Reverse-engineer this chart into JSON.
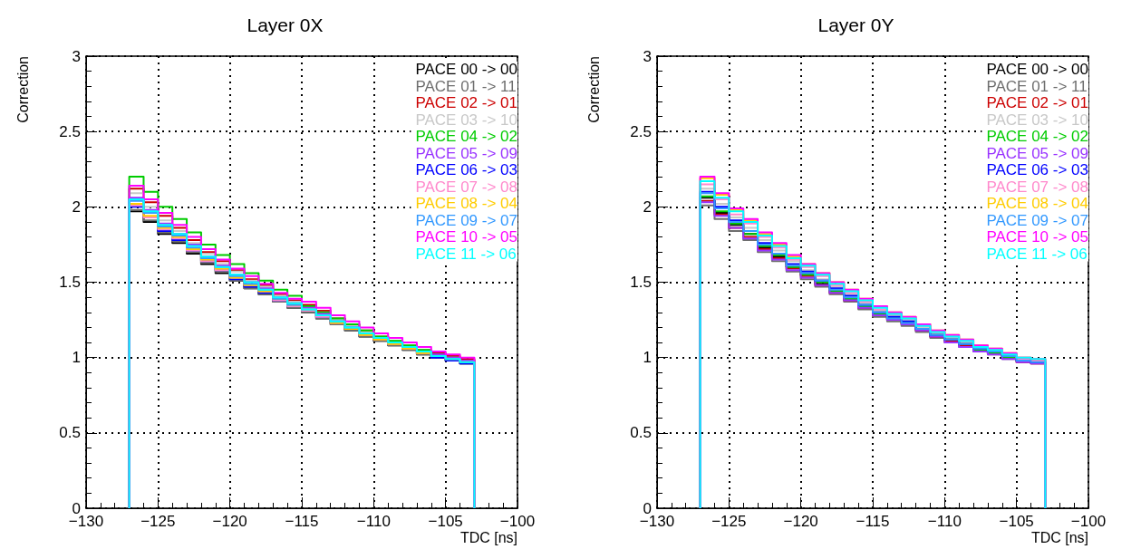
{
  "chart_data": [
    {
      "type": "histogram",
      "title": "Layer 0X",
      "xlabel": "TDC [ns]",
      "ylabel": "Correction",
      "xlim": [
        -130,
        -100
      ],
      "xticks": [
        -130,
        -125,
        -120,
        -115,
        -110,
        -105,
        -100
      ],
      "ylim": [
        0,
        3
      ],
      "yticks": [
        0,
        0.5,
        1,
        1.5,
        2,
        2.5,
        3
      ],
      "grid": true,
      "legend": "top right",
      "bins": [
        -127,
        -126,
        -125,
        -124,
        -123,
        -122,
        -121,
        -120,
        -119,
        -118,
        -117,
        -116,
        -115,
        -114,
        -113,
        -112,
        -111,
        -110,
        -109,
        -108,
        -107,
        -106,
        -105,
        -104,
        -103
      ],
      "series": [
        {
          "name": "PACE 00 -> 00",
          "color": "#000000",
          "values": [
            1.97,
            1.9,
            1.82,
            1.76,
            1.69,
            1.62,
            1.56,
            1.51,
            1.46,
            1.42,
            1.37,
            1.33,
            1.3,
            1.26,
            1.22,
            1.18,
            1.14,
            1.11,
            1.08,
            1.05,
            1.02,
            1.0,
            0.98,
            0.96
          ]
        },
        {
          "name": "PACE 01 -> 11",
          "color": "#6e6e6e",
          "values": [
            1.98,
            1.91,
            1.83,
            1.77,
            1.7,
            1.63,
            1.57,
            1.51,
            1.46,
            1.42,
            1.37,
            1.33,
            1.3,
            1.26,
            1.22,
            1.18,
            1.14,
            1.11,
            1.08,
            1.05,
            1.02,
            1.0,
            0.98,
            0.96
          ]
        },
        {
          "name": "PACE 02 -> 01",
          "color": "#cc0000",
          "values": [
            2.12,
            2.03,
            1.94,
            1.86,
            1.78,
            1.7,
            1.64,
            1.58,
            1.52,
            1.48,
            1.42,
            1.38,
            1.35,
            1.31,
            1.26,
            1.22,
            1.18,
            1.14,
            1.11,
            1.08,
            1.05,
            1.03,
            1.01,
            0.99
          ]
        },
        {
          "name": "PACE 03 -> 10",
          "color": "#c8c8c8",
          "values": [
            2.09,
            2.0,
            1.91,
            1.84,
            1.76,
            1.69,
            1.62,
            1.57,
            1.51,
            1.47,
            1.41,
            1.37,
            1.34,
            1.3,
            1.25,
            1.21,
            1.17,
            1.14,
            1.11,
            1.08,
            1.05,
            1.02,
            1.0,
            0.98
          ]
        },
        {
          "name": "PACE 04 -> 02",
          "color": "#00cc00",
          "values": [
            2.2,
            2.1,
            2.0,
            1.92,
            1.83,
            1.75,
            1.68,
            1.62,
            1.56,
            1.51,
            1.45,
            1.41,
            1.34,
            1.3,
            1.26,
            1.22,
            1.18,
            1.14,
            1.11,
            1.08,
            1.05,
            1.02,
            1.0,
            0.98
          ]
        },
        {
          "name": "PACE 05 -> 09",
          "color": "#9933ff",
          "values": [
            2.06,
            1.98,
            1.89,
            1.82,
            1.75,
            1.67,
            1.61,
            1.55,
            1.5,
            1.46,
            1.4,
            1.36,
            1.33,
            1.29,
            1.24,
            1.2,
            1.16,
            1.13,
            1.1,
            1.07,
            1.04,
            1.02,
            1.0,
            0.98
          ]
        },
        {
          "name": "PACE 06 -> 03",
          "color": "#0000ff",
          "values": [
            2.0,
            1.93,
            1.84,
            1.78,
            1.71,
            1.64,
            1.58,
            1.52,
            1.47,
            1.43,
            1.38,
            1.34,
            1.31,
            1.27,
            1.23,
            1.19,
            1.15,
            1.12,
            1.09,
            1.06,
            1.03,
            1.0,
            0.98,
            0.96
          ]
        },
        {
          "name": "PACE 07 -> 08",
          "color": "#ff88cc",
          "values": [
            2.01,
            1.93,
            1.85,
            1.79,
            1.71,
            1.64,
            1.58,
            1.53,
            1.48,
            1.44,
            1.38,
            1.34,
            1.31,
            1.27,
            1.23,
            1.19,
            1.15,
            1.12,
            1.09,
            1.06,
            1.03,
            1.01,
            0.99,
            0.97
          ]
        },
        {
          "name": "PACE 08 -> 04",
          "color": "#ffcc00",
          "values": [
            2.02,
            1.94,
            1.86,
            1.8,
            1.72,
            1.65,
            1.59,
            1.53,
            1.48,
            1.44,
            1.39,
            1.35,
            1.32,
            1.28,
            1.23,
            1.19,
            1.15,
            1.12,
            1.09,
            1.06,
            1.03,
            1.01,
            0.99,
            0.97
          ]
        },
        {
          "name": "PACE 09 -> 07",
          "color": "#3399ff",
          "values": [
            2.04,
            1.96,
            1.87,
            1.81,
            1.73,
            1.66,
            1.6,
            1.54,
            1.49,
            1.45,
            1.39,
            1.35,
            1.32,
            1.28,
            1.24,
            1.2,
            1.16,
            1.13,
            1.1,
            1.07,
            1.04,
            1.01,
            0.99,
            0.97
          ]
        },
        {
          "name": "PACE 10 -> 05",
          "color": "#ff00ff",
          "values": [
            2.14,
            2.05,
            1.96,
            1.88,
            1.8,
            1.72,
            1.65,
            1.59,
            1.54,
            1.49,
            1.43,
            1.39,
            1.37,
            1.33,
            1.28,
            1.24,
            1.2,
            1.16,
            1.13,
            1.1,
            1.07,
            1.04,
            1.02,
            1.0
          ]
        },
        {
          "name": "PACE 11 -> 06",
          "color": "#00ffff",
          "values": [
            2.05,
            1.97,
            1.88,
            1.82,
            1.74,
            1.67,
            1.6,
            1.55,
            1.5,
            1.45,
            1.4,
            1.36,
            1.32,
            1.28,
            1.24,
            1.2,
            1.16,
            1.13,
            1.1,
            1.07,
            1.04,
            1.01,
            0.99,
            0.97
          ]
        }
      ]
    },
    {
      "type": "histogram",
      "title": "Layer 0Y",
      "xlabel": "TDC [ns]",
      "ylabel": "Correction",
      "xlim": [
        -130,
        -100
      ],
      "xticks": [
        -130,
        -125,
        -120,
        -115,
        -110,
        -105,
        -100
      ],
      "ylim": [
        0,
        3
      ],
      "yticks": [
        0,
        0.5,
        1,
        1.5,
        2,
        2.5,
        3
      ],
      "grid": true,
      "legend": "top right",
      "bins": [
        -127,
        -126,
        -125,
        -124,
        -123,
        -122,
        -121,
        -120,
        -119,
        -118,
        -117,
        -116,
        -115,
        -114,
        -113,
        -112,
        -111,
        -110,
        -109,
        -108,
        -107,
        -106,
        -105,
        -104,
        -103
      ],
      "series": [
        {
          "name": "PACE 00 -> 00",
          "color": "#000000",
          "values": [
            2.06,
            1.96,
            1.88,
            1.82,
            1.73,
            1.67,
            1.6,
            1.55,
            1.49,
            1.44,
            1.39,
            1.34,
            1.29,
            1.26,
            1.23,
            1.18,
            1.14,
            1.11,
            1.08,
            1.05,
            1.03,
            1.0,
            0.98,
            0.97
          ]
        },
        {
          "name": "PACE 01 -> 11",
          "color": "#6e6e6e",
          "values": [
            2.01,
            1.92,
            1.84,
            1.78,
            1.7,
            1.64,
            1.57,
            1.52,
            1.47,
            1.42,
            1.37,
            1.32,
            1.27,
            1.24,
            1.21,
            1.17,
            1.13,
            1.1,
            1.07,
            1.04,
            1.02,
            0.99,
            0.97,
            0.96
          ]
        },
        {
          "name": "PACE 02 -> 01",
          "color": "#cc0000",
          "values": [
            2.04,
            1.95,
            1.86,
            1.8,
            1.72,
            1.66,
            1.59,
            1.54,
            1.48,
            1.43,
            1.38,
            1.33,
            1.28,
            1.25,
            1.22,
            1.18,
            1.14,
            1.11,
            1.08,
            1.05,
            1.03,
            1.0,
            0.97,
            0.96
          ]
        },
        {
          "name": "PACE 03 -> 10",
          "color": "#c8c8c8",
          "values": [
            2.12,
            2.02,
            1.93,
            1.86,
            1.78,
            1.71,
            1.64,
            1.58,
            1.52,
            1.47,
            1.42,
            1.36,
            1.31,
            1.28,
            1.25,
            1.2,
            1.16,
            1.13,
            1.1,
            1.06,
            1.04,
            1.01,
            0.99,
            0.98
          ]
        },
        {
          "name": "PACE 04 -> 02",
          "color": "#00cc00",
          "values": [
            2.07,
            1.97,
            1.89,
            1.82,
            1.74,
            1.68,
            1.6,
            1.55,
            1.5,
            1.44,
            1.39,
            1.34,
            1.29,
            1.26,
            1.23,
            1.19,
            1.15,
            1.12,
            1.09,
            1.05,
            1.03,
            1.0,
            0.98,
            0.97
          ]
        },
        {
          "name": "PACE 05 -> 09",
          "color": "#9933ff",
          "values": [
            2.03,
            1.94,
            1.86,
            1.79,
            1.71,
            1.65,
            1.58,
            1.53,
            1.48,
            1.43,
            1.38,
            1.33,
            1.28,
            1.25,
            1.22,
            1.18,
            1.14,
            1.1,
            1.07,
            1.04,
            1.02,
            0.99,
            0.97,
            0.96
          ]
        },
        {
          "name": "PACE 06 -> 03",
          "color": "#0000ff",
          "values": [
            2.1,
            2.0,
            1.91,
            1.84,
            1.76,
            1.69,
            1.62,
            1.57,
            1.51,
            1.46,
            1.41,
            1.35,
            1.3,
            1.27,
            1.24,
            1.19,
            1.15,
            1.12,
            1.09,
            1.06,
            1.04,
            1.01,
            0.98,
            0.97
          ]
        },
        {
          "name": "PACE 07 -> 08",
          "color": "#ff88cc",
          "values": [
            2.15,
            2.05,
            1.95,
            1.89,
            1.8,
            1.73,
            1.65,
            1.6,
            1.54,
            1.48,
            1.43,
            1.37,
            1.32,
            1.29,
            1.26,
            1.21,
            1.17,
            1.14,
            1.11,
            1.07,
            1.05,
            1.02,
            0.99,
            0.98
          ]
        },
        {
          "name": "PACE 08 -> 04",
          "color": "#ffcc00",
          "values": [
            2.19,
            2.08,
            1.98,
            1.91,
            1.82,
            1.75,
            1.67,
            1.62,
            1.56,
            1.5,
            1.45,
            1.39,
            1.34,
            1.3,
            1.27,
            1.22,
            1.18,
            1.15,
            1.12,
            1.08,
            1.06,
            1.03,
            1.0,
            0.99
          ]
        },
        {
          "name": "PACE 09 -> 07",
          "color": "#3399ff",
          "values": [
            2.09,
            1.99,
            1.9,
            1.84,
            1.75,
            1.69,
            1.61,
            1.56,
            1.51,
            1.45,
            1.4,
            1.35,
            1.3,
            1.26,
            1.23,
            1.19,
            1.15,
            1.12,
            1.09,
            1.06,
            1.04,
            1.01,
            0.98,
            0.97
          ]
        },
        {
          "name": "PACE 10 -> 05",
          "color": "#ff00ff",
          "values": [
            2.2,
            2.09,
            1.99,
            1.92,
            1.83,
            1.76,
            1.68,
            1.62,
            1.56,
            1.5,
            1.45,
            1.39,
            1.34,
            1.3,
            1.27,
            1.22,
            1.18,
            1.15,
            1.12,
            1.08,
            1.06,
            1.03,
            1.0,
            0.99
          ]
        },
        {
          "name": "PACE 11 -> 06",
          "color": "#00ffff",
          "values": [
            2.17,
            2.06,
            1.97,
            1.9,
            1.81,
            1.74,
            1.66,
            1.61,
            1.55,
            1.49,
            1.44,
            1.38,
            1.33,
            1.29,
            1.26,
            1.21,
            1.17,
            1.14,
            1.11,
            1.07,
            1.05,
            1.02,
            1.0,
            0.99
          ]
        }
      ]
    }
  ]
}
